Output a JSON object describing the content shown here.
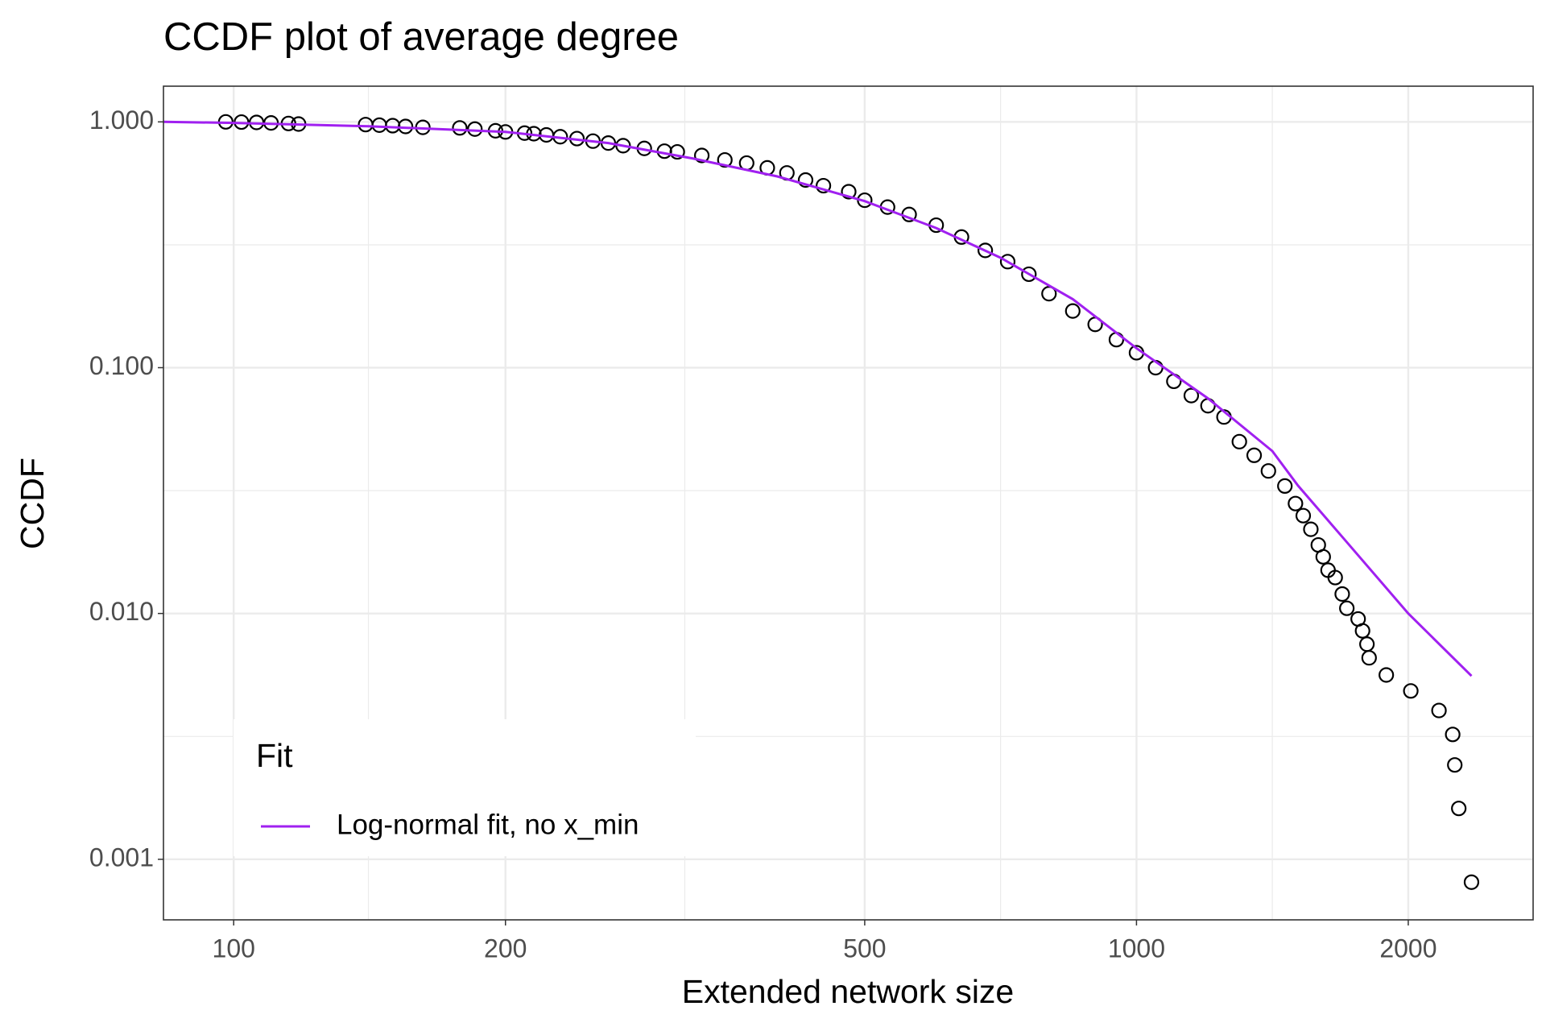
{
  "chart_data": {
    "type": "scatter",
    "title": "CCDF plot of average degree",
    "x_label": "Extended network size",
    "y_label": "CCDF",
    "xscale": "log",
    "yscale": "log",
    "grid": true,
    "xlim": [
      83.6,
      2750
    ],
    "ylim": [
      0.000567,
      1.397
    ],
    "xticks": [
      100,
      200,
      500,
      1000,
      2000
    ],
    "xminorticks": [
      141,
      316,
      707,
      1414
    ],
    "yticks": [
      {
        "value": 0.001,
        "label": "0.001"
      },
      {
        "value": 0.01,
        "label": "0.010"
      },
      {
        "value": 0.1,
        "label": "0.100"
      },
      {
        "value": 1,
        "label": "1.000"
      }
    ],
    "yminorticks": [
      0.00316,
      0.0316,
      0.316
    ],
    "legend_title": "Fit",
    "legend_position": "bottom-left",
    "series": [
      {
        "type": "scatter",
        "color": "#000000",
        "x": [
          98,
          102,
          106,
          110,
          115,
          118,
          140,
          145,
          150,
          155,
          162,
          178,
          185,
          195,
          200,
          210,
          215,
          222,
          230,
          240,
          250,
          260,
          270,
          285,
          300,
          310,
          330,
          350,
          370,
          390,
          410,
          430,
          450,
          480,
          500,
          530,
          560,
          600,
          640,
          680,
          720,
          760,
          800,
          850,
          900,
          950,
          1000,
          1050,
          1100,
          1150,
          1200,
          1250,
          1300,
          1350,
          1400,
          1460,
          1500,
          1530,
          1560,
          1590,
          1610,
          1630,
          1660,
          1690,
          1710,
          1760,
          1780,
          1800,
          1810,
          1891,
          2013,
          2163,
          2240,
          2252,
          2275,
          2350
        ],
        "values": [
          1.0,
          0.998,
          0.995,
          0.99,
          0.985,
          0.98,
          0.975,
          0.97,
          0.965,
          0.958,
          0.95,
          0.945,
          0.935,
          0.92,
          0.91,
          0.9,
          0.895,
          0.885,
          0.87,
          0.855,
          0.835,
          0.82,
          0.8,
          0.78,
          0.76,
          0.755,
          0.73,
          0.7,
          0.68,
          0.65,
          0.62,
          0.58,
          0.55,
          0.52,
          0.48,
          0.45,
          0.42,
          0.38,
          0.34,
          0.3,
          0.27,
          0.24,
          0.2,
          0.17,
          0.15,
          0.13,
          0.115,
          0.1,
          0.088,
          0.077,
          0.07,
          0.063,
          0.05,
          0.044,
          0.038,
          0.033,
          0.028,
          0.025,
          0.022,
          0.019,
          0.017,
          0.015,
          0.014,
          0.012,
          0.0105,
          0.0095,
          0.0085,
          0.0075,
          0.0066,
          0.00562,
          0.00484,
          0.00403,
          0.00322,
          0.00242,
          0.00161,
          0.000807
        ]
      },
      {
        "type": "line",
        "name": "Log-normal fit, no x_min",
        "color": "#a020f0",
        "x": [
          83.6,
          100,
          141,
          200,
          260,
          323,
          400,
          500,
          600,
          707,
          850,
          1000,
          1200,
          1414,
          1510,
          1700,
          2000,
          2350
        ],
        "values": [
          1.0,
          0.99,
          0.96,
          0.911,
          0.82,
          0.709,
          0.6,
          0.476,
          0.37,
          0.28,
          0.19,
          0.12,
          0.075,
          0.0458,
          0.0331,
          0.02,
          0.01,
          0.00557
        ]
      }
    ]
  }
}
